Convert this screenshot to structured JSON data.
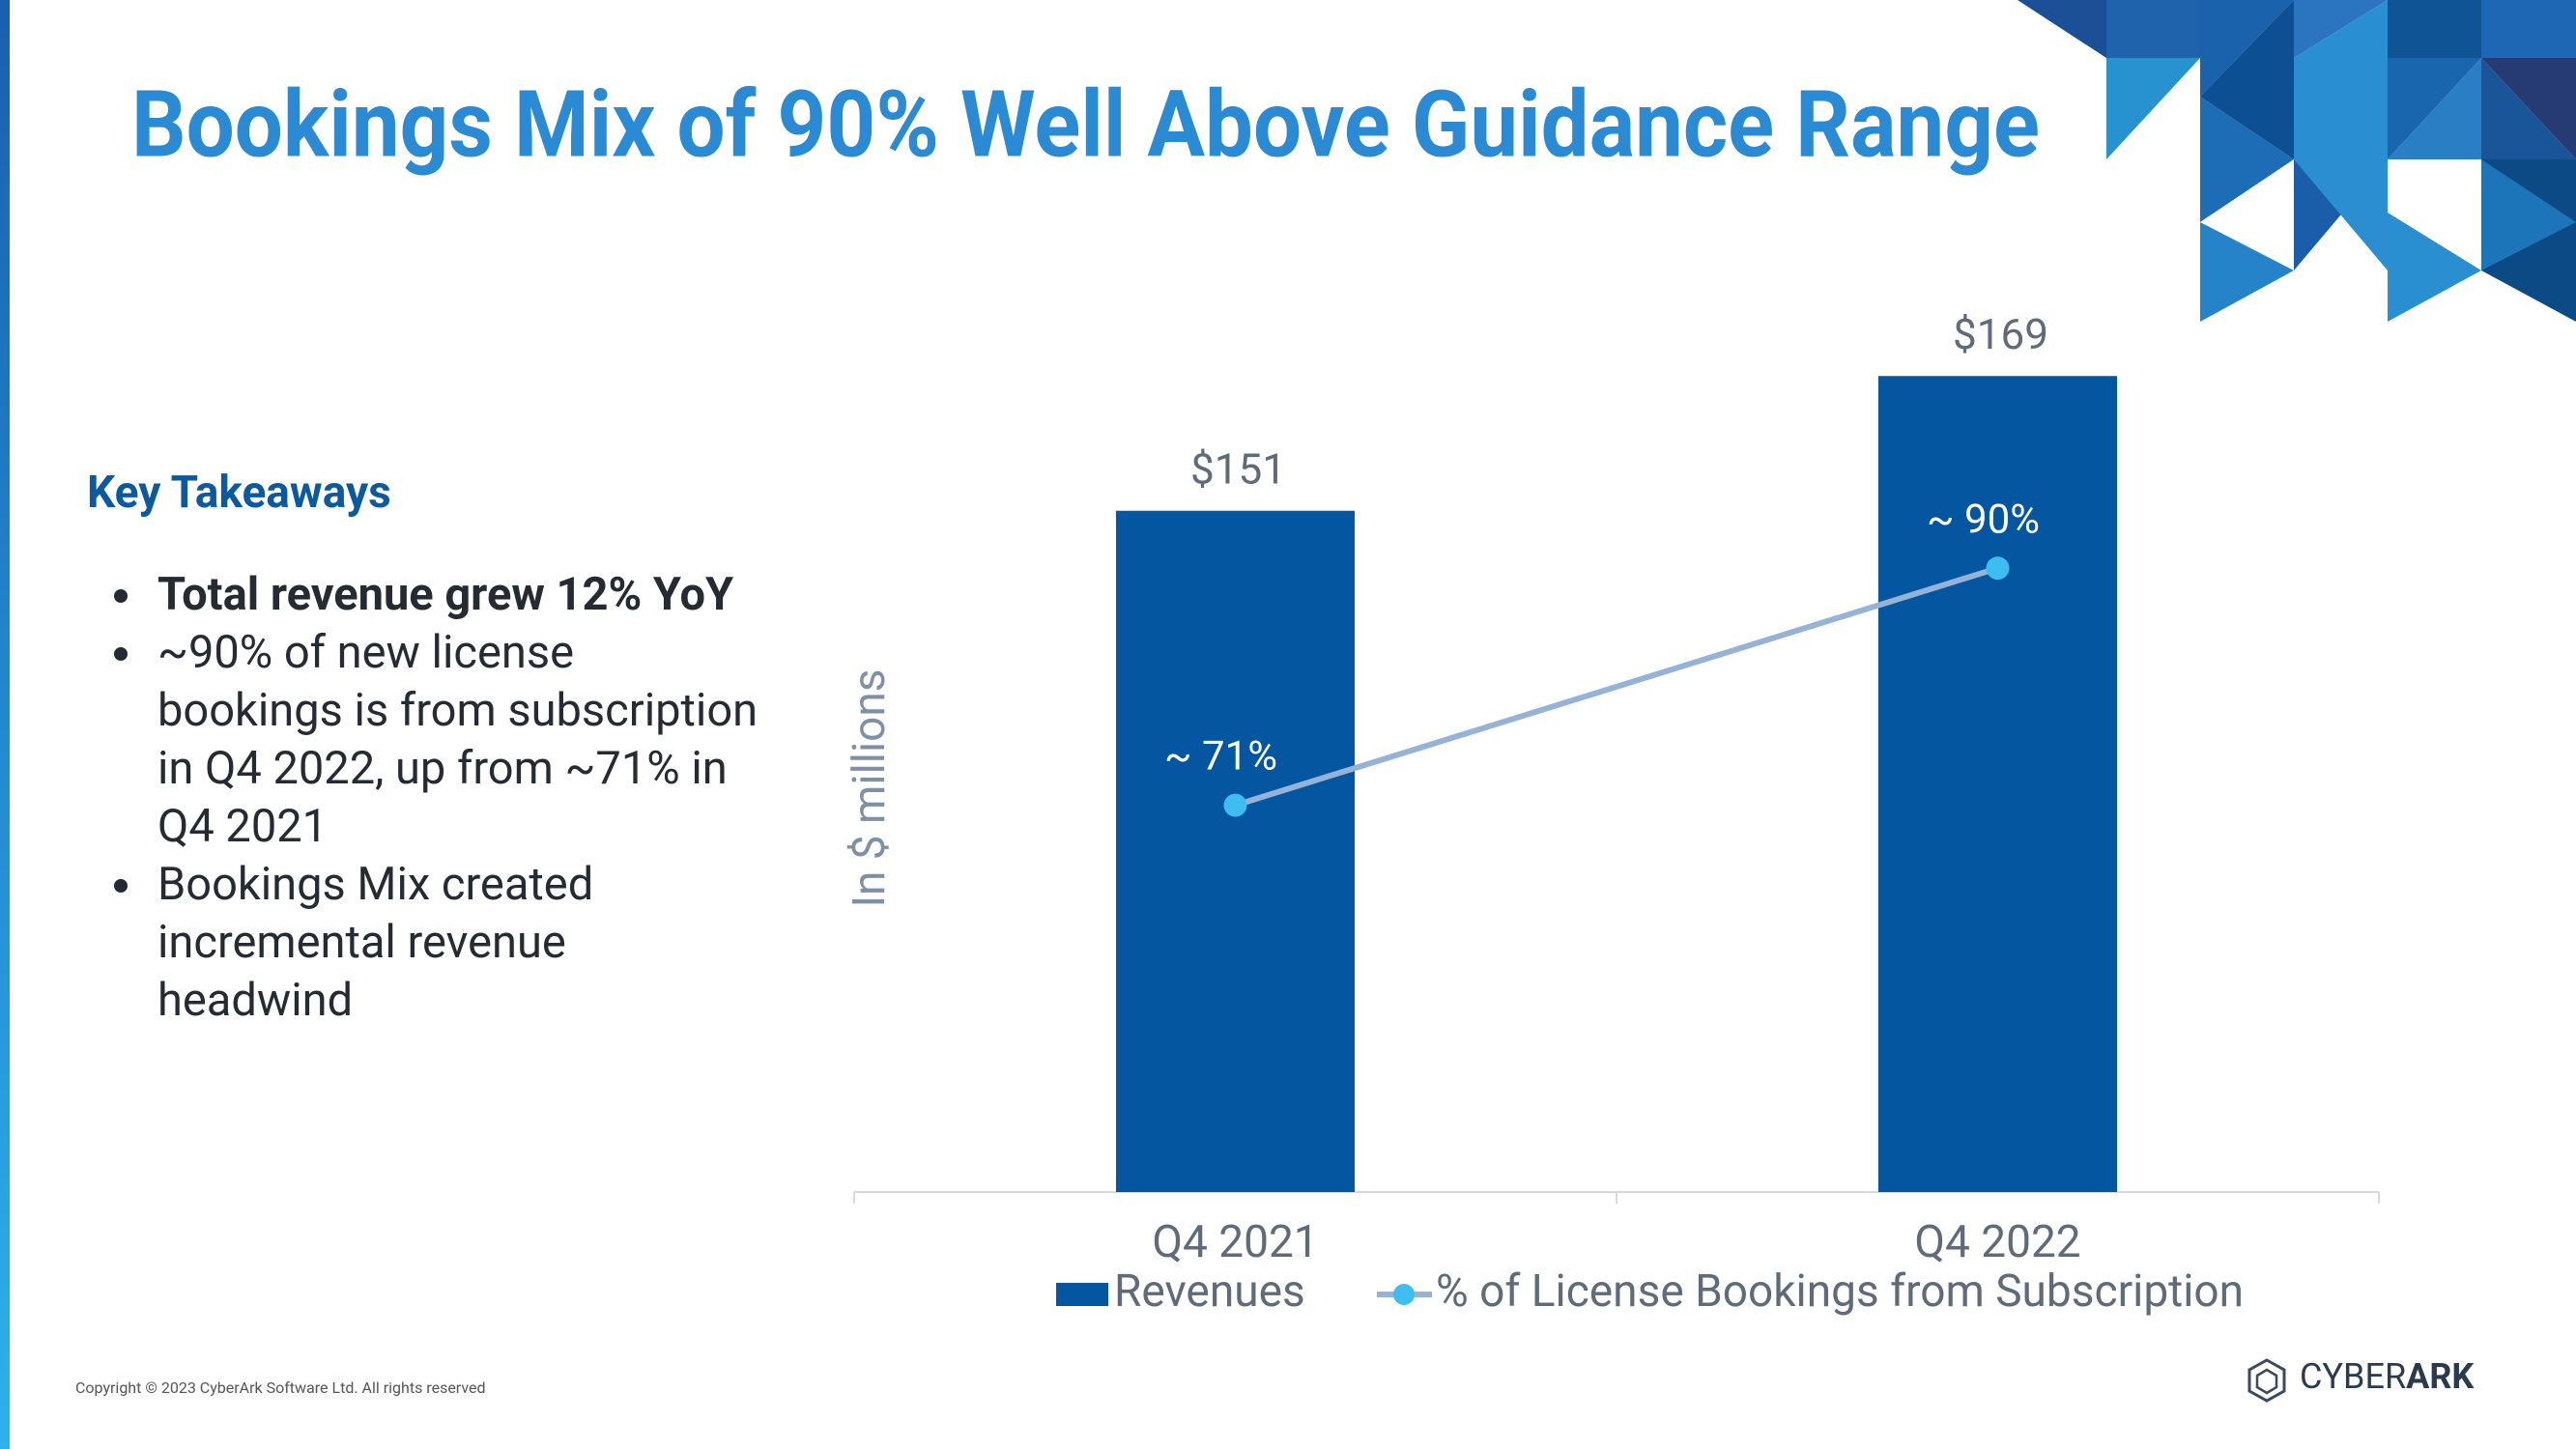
{
  "title": "Bookings Mix of 90% Well Above Guidance Range",
  "takeaways": {
    "heading": "Key Takeaways",
    "bullets": [
      "Total revenue grew 12% YoY",
      "~90% of new license bookings is from subscription in Q4 2022, up from ~71% in Q4 2021",
      "Bookings Mix created incremental revenue headwind"
    ]
  },
  "chart_data": {
    "type": "bar",
    "y_label": "In $ millions",
    "categories": [
      "Q4 2021",
      "Q4 2022"
    ],
    "ylim": [
      60,
      180
    ],
    "y2lim": [
      40,
      112
    ],
    "series": [
      {
        "name": "Revenues",
        "type": "bar",
        "color": "#0556a0",
        "values": [
          151,
          169
        ],
        "value_labels": [
          "$151",
          "$169"
        ]
      },
      {
        "name": "% of License Bookings from Subscription",
        "type": "line",
        "axis": "y2",
        "color": "#95b3d7",
        "marker_color": "#3dbdf0",
        "values": [
          71,
          90
        ],
        "value_labels": [
          "~ 71%",
          "~ 90%"
        ]
      }
    ]
  },
  "footer": {
    "copyright": "Copyright © 2023 CyberArk Software Ltd. All rights reserved",
    "logo": {
      "light": "CYBER",
      "bold": "ARK"
    }
  }
}
